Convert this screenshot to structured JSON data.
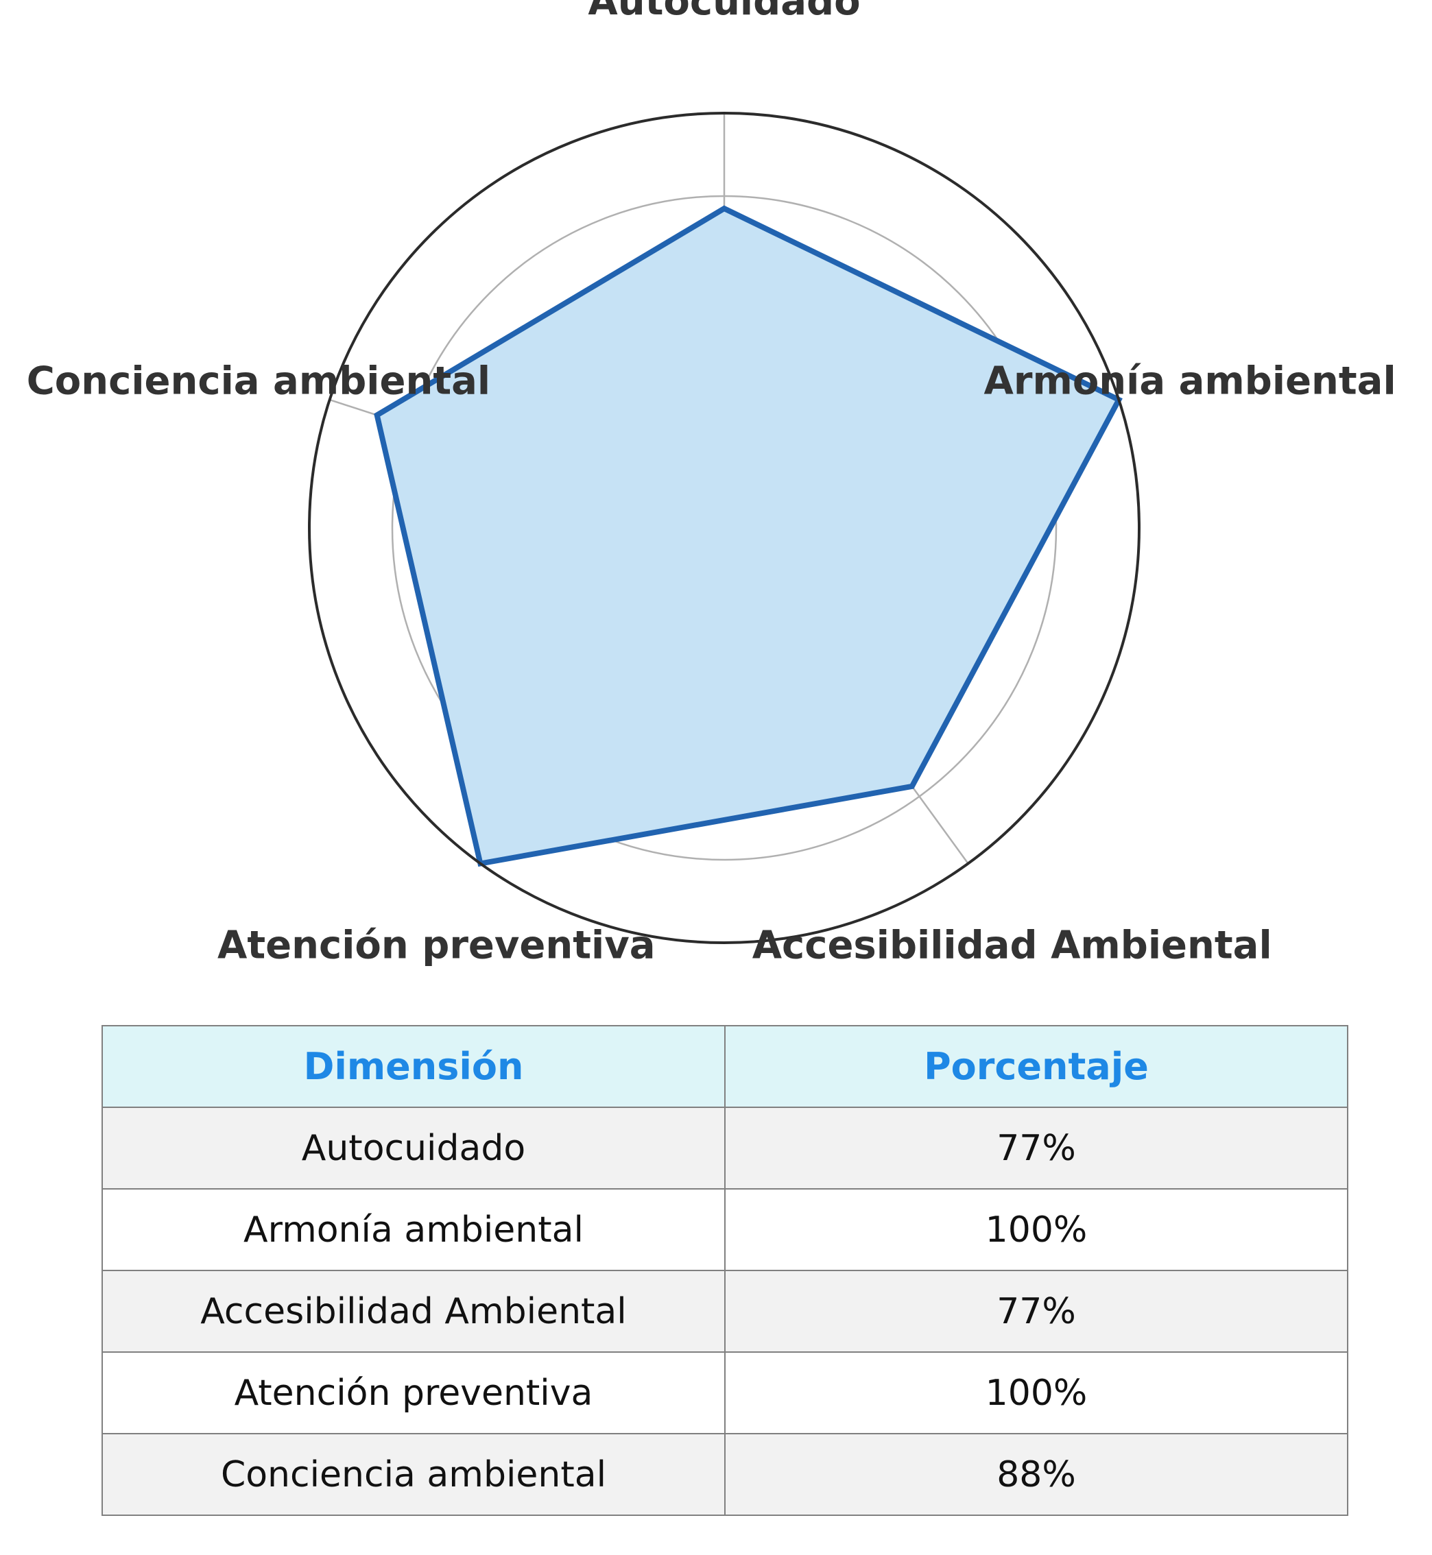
{
  "chart_data": {
    "type": "radar",
    "categories": [
      "Autocuidado",
      "Armonía ambiental",
      "Accesibilidad Ambiental",
      "Atención preventiva",
      "Conciencia ambiental"
    ],
    "values": [
      77,
      100,
      77,
      100,
      88
    ],
    "rlim": [
      0,
      100
    ],
    "grid": true,
    "colors": {
      "line": "#2163b0",
      "fill": "#c6e2f5",
      "grid": "#b0b0b0",
      "outer_circle": "#2b2b2b"
    }
  },
  "table": {
    "headers": [
      "Dimensión",
      "Porcentaje"
    ],
    "rows": [
      [
        "Autocuidado",
        "77%"
      ],
      [
        "Armonía ambiental",
        "100%"
      ],
      [
        "Accesibilidad Ambiental",
        "77%"
      ],
      [
        "Atención preventiva",
        "100%"
      ],
      [
        "Conciencia ambiental",
        "88%"
      ]
    ],
    "colors": {
      "header_bg": "#ddf5f8",
      "header_text": "#1e88e5",
      "odd_row_bg": "#f2f2f2",
      "even_row_bg": "#ffffff"
    }
  }
}
